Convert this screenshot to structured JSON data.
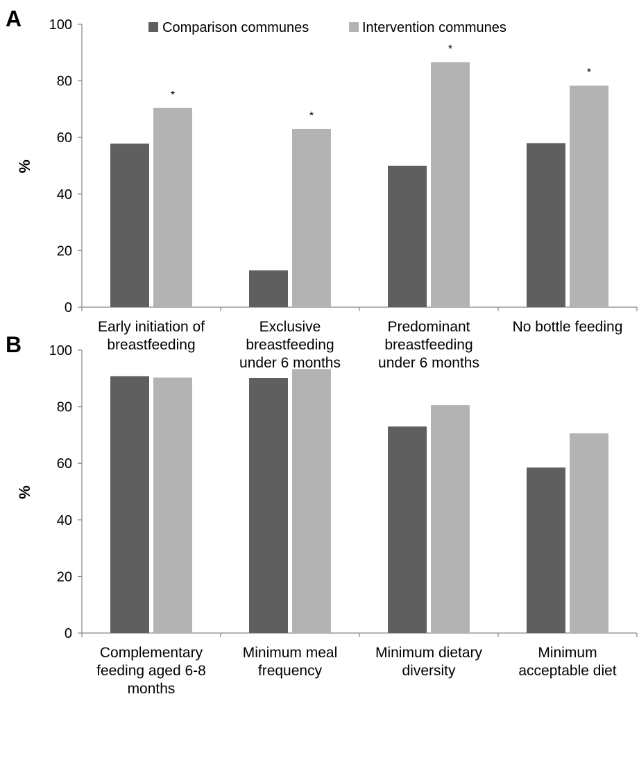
{
  "legend": {
    "items": [
      {
        "name": "Comparison communes",
        "color": "#5f5f5f"
      },
      {
        "name": "Intervention communes",
        "color": "#b3b3b3"
      }
    ]
  },
  "chart_data": [
    {
      "type": "bar",
      "panel": "A",
      "ylabel": "%",
      "ylim": [
        0,
        100
      ],
      "yticks": [
        "0",
        "20",
        "40",
        "60",
        "80",
        "100"
      ],
      "categories": [
        [
          "Early initiation of",
          "breastfeeding"
        ],
        [
          "Exclusive",
          "breastfeeding",
          "under 6 months"
        ],
        [
          "Predominant",
          "breastfeeding",
          "under 6 months"
        ],
        [
          "No bottle feeding"
        ]
      ],
      "series": [
        {
          "name": "Comparison communes",
          "color": "#5f5f5f",
          "values": [
            57.8,
            13.0,
            50.0,
            58.0
          ]
        },
        {
          "name": "Intervention communes",
          "color": "#b3b3b3",
          "values": [
            70.4,
            63.0,
            86.6,
            78.3
          ]
        }
      ],
      "annotations": [
        "*",
        "*",
        "*",
        "*"
      ]
    },
    {
      "type": "bar",
      "panel": "B",
      "ylabel": "%",
      "ylim": [
        0,
        100
      ],
      "yticks": [
        "0",
        "20",
        "40",
        "60",
        "80",
        "100"
      ],
      "categories": [
        [
          "Complementary",
          "feeding aged 6-8",
          "months"
        ],
        [
          "Minimum meal",
          "frequency"
        ],
        [
          "Minimum dietary",
          "diversity"
        ],
        [
          "Minimum",
          "acceptable diet"
        ]
      ],
      "series": [
        {
          "name": "Comparison communes",
          "color": "#5f5f5f",
          "values": [
            90.8,
            90.2,
            73.0,
            58.5
          ]
        },
        {
          "name": "Intervention communes",
          "color": "#b3b3b3",
          "values": [
            90.3,
            93.3,
            80.6,
            70.6
          ]
        }
      ],
      "annotations": [
        "",
        "",
        "",
        ""
      ]
    }
  ]
}
